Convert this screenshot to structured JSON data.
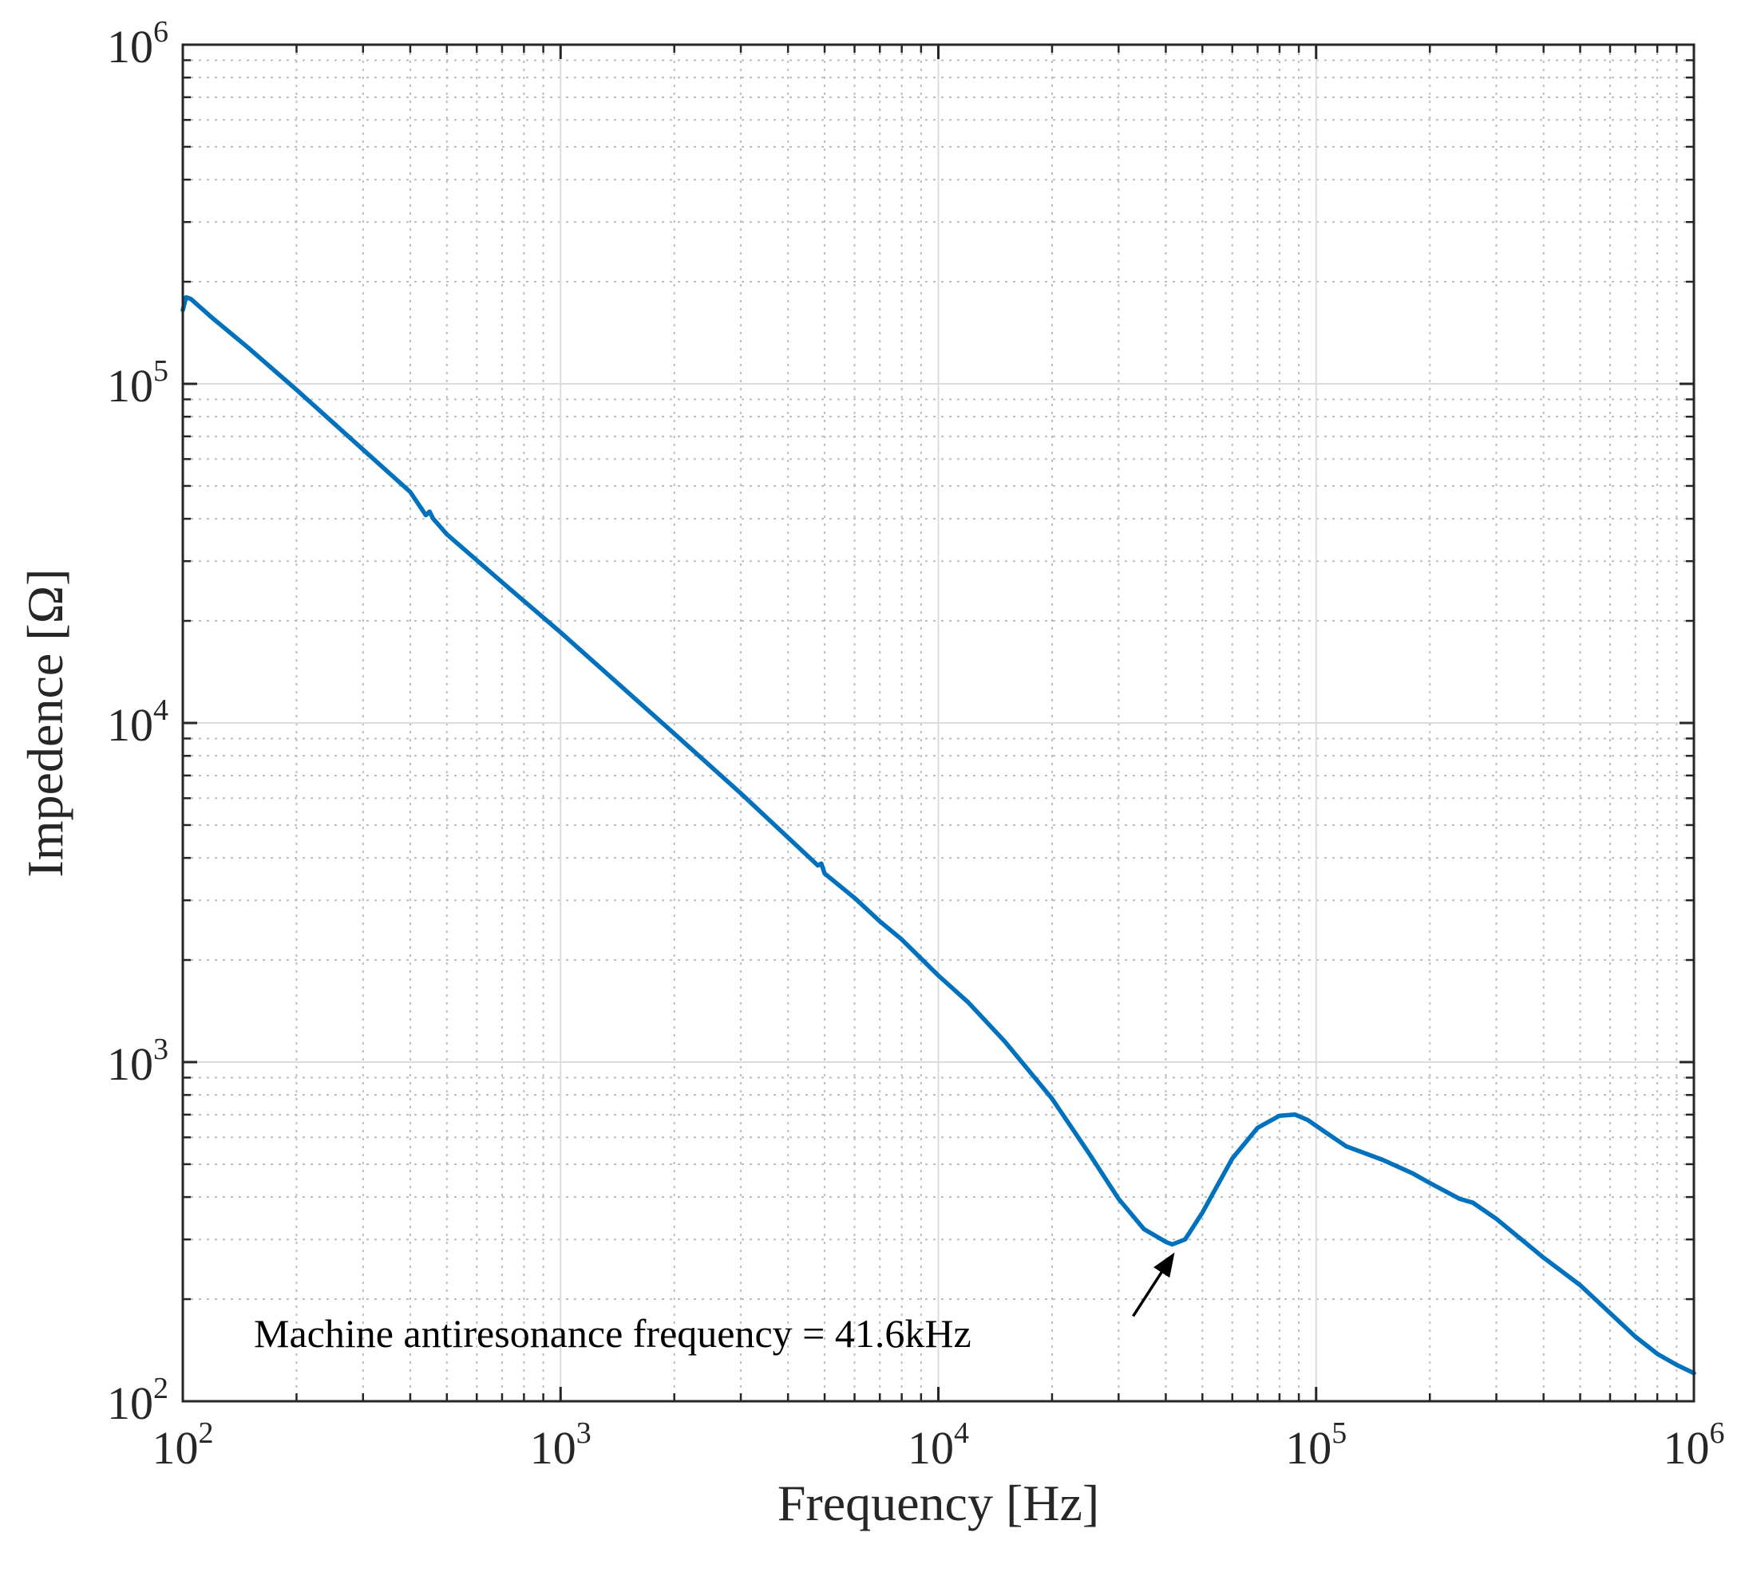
{
  "chart_data": {
    "type": "line",
    "title": "",
    "xlabel": "Frequency [Hz]",
    "ylabel": "Impedence [Ω]",
    "xscale": "log",
    "yscale": "log",
    "xlim": [
      100,
      1000000
    ],
    "ylim": [
      100,
      1000000
    ],
    "grid": true,
    "x_ticks": [
      {
        "base": "10",
        "exp": "2"
      },
      {
        "base": "10",
        "exp": "3"
      },
      {
        "base": "10",
        "exp": "4"
      },
      {
        "base": "10",
        "exp": "5"
      },
      {
        "base": "10",
        "exp": "6"
      }
    ],
    "y_ticks": [
      {
        "base": "10",
        "exp": "2"
      },
      {
        "base": "10",
        "exp": "3"
      },
      {
        "base": "10",
        "exp": "4"
      },
      {
        "base": "10",
        "exp": "5"
      },
      {
        "base": "10",
        "exp": "6"
      }
    ],
    "series": [
      {
        "color": "#0072BD",
        "x": [
          100,
          102,
          105,
          120,
          150,
          200,
          300,
          400,
          440,
          450,
          460,
          500,
          700,
          1000,
          2000,
          3000,
          4800,
          4900,
          5000,
          6000,
          7000,
          8000,
          10000,
          12000,
          15000,
          20000,
          25000,
          30000,
          35000,
          40000,
          41600,
          45000,
          50000,
          60000,
          70000,
          80000,
          88000,
          95000,
          105000,
          120000,
          150000,
          180000,
          200000,
          240000,
          260000,
          300000,
          400000,
          500000,
          600000,
          700000,
          800000,
          900000,
          1000000
        ],
        "y": [
          165000,
          180000,
          178000,
          156000,
          127000,
          96000,
          64000,
          48000,
          41000,
          42000,
          40000,
          36000,
          26000,
          18500,
          9300,
          6200,
          3800,
          3850,
          3600,
          3050,
          2600,
          2300,
          1800,
          1500,
          1150,
          780,
          540,
          395,
          322,
          295,
          290,
          300,
          360,
          520,
          640,
          695,
          700,
          675,
          625,
          565,
          515,
          470,
          440,
          395,
          385,
          345,
          265,
          220,
          182,
          155,
          138,
          128,
          121
        ]
      }
    ],
    "annotation": {
      "text": "Machine antiresonance frequency = 41.6kHz",
      "x": 41600,
      "y": 290
    }
  }
}
